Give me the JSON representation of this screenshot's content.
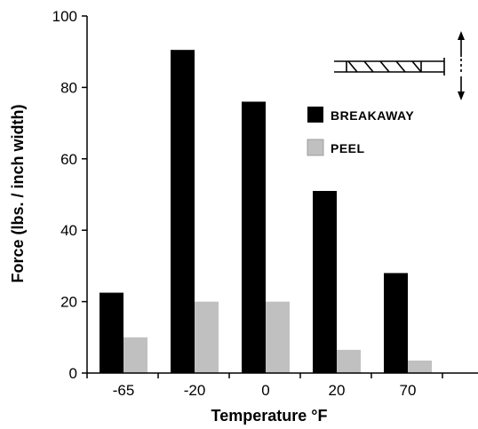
{
  "chart_data": {
    "type": "bar",
    "categories": [
      "-65",
      "-20",
      "0",
      "20",
      "70"
    ],
    "series": [
      {
        "name": "BREAKAWAY",
        "color": "#000000",
        "values": [
          22.5,
          90.5,
          76,
          51,
          28
        ]
      },
      {
        "name": "PEEL",
        "color": "#c0c0c0",
        "values": [
          10,
          20,
          20,
          6.5,
          3.5
        ]
      }
    ],
    "xlabel": "Temperature °F",
    "ylabel": "Force (lbs. / inch width)",
    "ylim": [
      0,
      100
    ],
    "yticks": [
      "0",
      "20",
      "40",
      "60",
      "80",
      "100"
    ],
    "grid": false,
    "legend_position": "top-right",
    "annotation_icon": "peel-test-schematic-icon"
  }
}
